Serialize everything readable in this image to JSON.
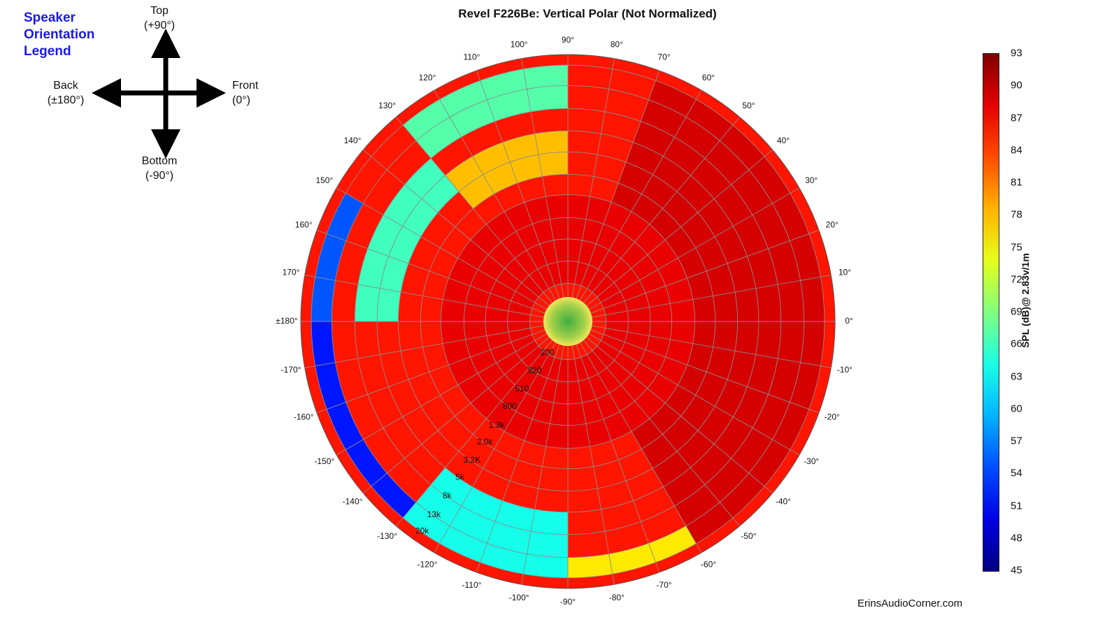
{
  "chart_data": {
    "type": "polar-heatmap",
    "title": "Revel F226Be: Vertical Polar (Not Normalized)",
    "angle_labels": [
      "0°",
      "10°",
      "20°",
      "30°",
      "40°",
      "50°",
      "60°",
      "70°",
      "80°",
      "90°",
      "100°",
      "110°",
      "120°",
      "130°",
      "140°",
      "150°",
      "160°",
      "170°",
      "±180°",
      "-170°",
      "-160°",
      "-150°",
      "-140°",
      "-130°",
      "-120°",
      "-110°",
      "-100°",
      "-90°",
      "-80°",
      "-70°",
      "-60°",
      "-50°",
      "-40°",
      "-30°",
      "-20°",
      "-10°"
    ],
    "angles_deg": [
      0,
      10,
      20,
      30,
      40,
      50,
      60,
      70,
      80,
      90,
      100,
      110,
      120,
      130,
      140,
      150,
      160,
      170,
      180,
      -170,
      -160,
      -150,
      -140,
      -130,
      -120,
      -110,
      -100,
      -90,
      -80,
      -70,
      -60,
      -50,
      -40,
      -30,
      -20,
      -10
    ],
    "frequency_labels": [
      "200",
      "320",
      "510",
      "800",
      "1.3k",
      "2.0k",
      "3.2K",
      "5k",
      "8k",
      "13k",
      "20k"
    ],
    "frequency_hz": [
      200,
      320,
      510,
      800,
      1300,
      2000,
      3200,
      5000,
      8000,
      13000,
      20000
    ],
    "radial_scale": "log",
    "colorbar": {
      "label": "SPL (dB)@ 2.83v/1m",
      "ticks": [
        93,
        90,
        87,
        84,
        81,
        78,
        75,
        72,
        69,
        66,
        63,
        60,
        57,
        54,
        51,
        48,
        45
      ],
      "range": [
        45,
        93
      ],
      "colormap": "jet"
    },
    "regions": [
      {
        "angles": [
          -60,
          70
        ],
        "freq_range": [
          200,
          20000
        ],
        "spl_db": 89
      },
      {
        "angles": [
          70,
          90
        ],
        "freq_range": [
          5000,
          20000
        ],
        "spl_db": 86
      },
      {
        "angles": [
          90,
          130
        ],
        "freq_range": [
          2000,
          5000
        ],
        "spl_db": 78
      },
      {
        "angles": [
          90,
          130
        ],
        "freq_range": [
          8000,
          20000
        ],
        "spl_db": 67
      },
      {
        "angles": [
          130,
          180
        ],
        "freq_range": [
          3200,
          8000
        ],
        "spl_db": 66
      },
      {
        "angles": [
          150,
          180
        ],
        "freq_range": [
          13000,
          20000
        ],
        "spl_db": 55
      },
      {
        "angles": [
          -180,
          -130
        ],
        "freq_range": [
          13000,
          20000
        ],
        "spl_db": 52
      },
      {
        "angles": [
          -130,
          -90
        ],
        "freq_range": [
          5000,
          20000
        ],
        "spl_db": 64
      },
      {
        "angles": [
          -90,
          -60
        ],
        "freq_range": [
          13000,
          20000
        ],
        "spl_db": 76
      },
      {
        "angles": [
          -180,
          180
        ],
        "freq_range": [
          200,
          1300
        ],
        "spl_db": 88
      }
    ]
  },
  "orientation_legend": {
    "heading": [
      "Speaker",
      "Orientation",
      "Legend"
    ],
    "top": [
      "Top",
      "(+90°)"
    ],
    "bottom": [
      "Bottom",
      "(-90°)"
    ],
    "front": [
      "Front",
      "(0°)"
    ],
    "back": [
      "Back",
      "(±180°)"
    ]
  },
  "watermark": "ErinsAudioCorner.com",
  "colors": {
    "heading_blue": "#1a1ae6",
    "grid": "#8c8c8c",
    "text": "#111111"
  }
}
